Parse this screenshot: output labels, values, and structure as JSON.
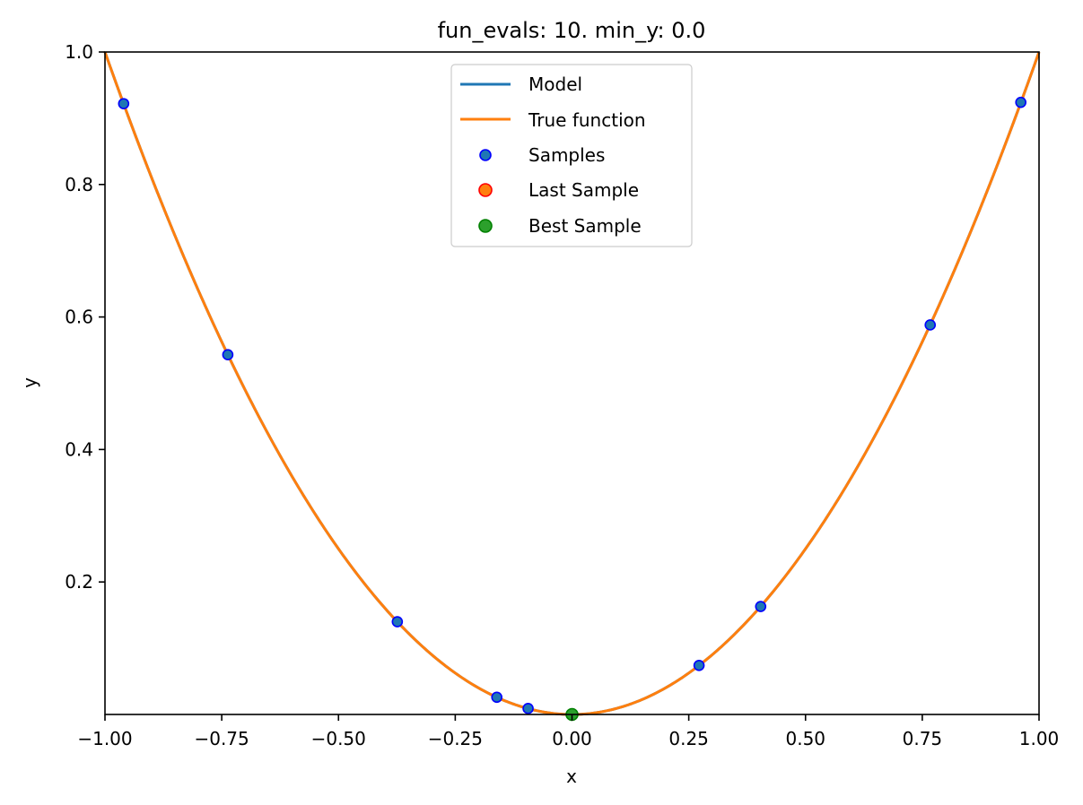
{
  "chart_data": {
    "type": "line",
    "title": "fun_evals: 10. min_y: 0.0",
    "xlabel": "x",
    "ylabel": "y",
    "xlim": [
      -1.0,
      1.0
    ],
    "ylim": [
      0.0,
      1.0
    ],
    "x_ticks": [
      "−1.00",
      "−0.75",
      "−0.50",
      "−0.25",
      "0.00",
      "0.25",
      "0.50",
      "0.75",
      "1.00"
    ],
    "y_ticks": [
      "0.2",
      "0.4",
      "0.6",
      "0.8",
      "1.0"
    ],
    "grid": false,
    "legend_position": "top-center",
    "curve_function": "y = x^2",
    "series": [
      {
        "name": "Model",
        "kind": "line",
        "color": "#1f77b4",
        "function": "x^2"
      },
      {
        "name": "True function",
        "kind": "line",
        "color": "#ff7f0e",
        "function": "x^2"
      },
      {
        "name": "Samples",
        "kind": "scatter",
        "color": "#1f77b4",
        "edgecolor": "#0000ff",
        "points": [
          {
            "x": -0.96,
            "y": 0.922
          },
          {
            "x": -0.737,
            "y": 0.543
          },
          {
            "x": -0.374,
            "y": 0.14
          },
          {
            "x": -0.161,
            "y": 0.026
          },
          {
            "x": -0.094,
            "y": 0.009
          },
          {
            "x": 0.272,
            "y": 0.074
          },
          {
            "x": 0.404,
            "y": 0.163
          },
          {
            "x": 0.767,
            "y": 0.588
          },
          {
            "x": 0.961,
            "y": 0.924
          }
        ]
      },
      {
        "name": "Last Sample",
        "kind": "scatter",
        "color": "#ff7f0e",
        "edgecolor": "#ff0000",
        "points": []
      },
      {
        "name": "Best Sample",
        "kind": "scatter",
        "color": "#2ca02c",
        "edgecolor": "#008000",
        "points": [
          {
            "x": 0.0,
            "y": 0.0
          }
        ]
      }
    ]
  }
}
